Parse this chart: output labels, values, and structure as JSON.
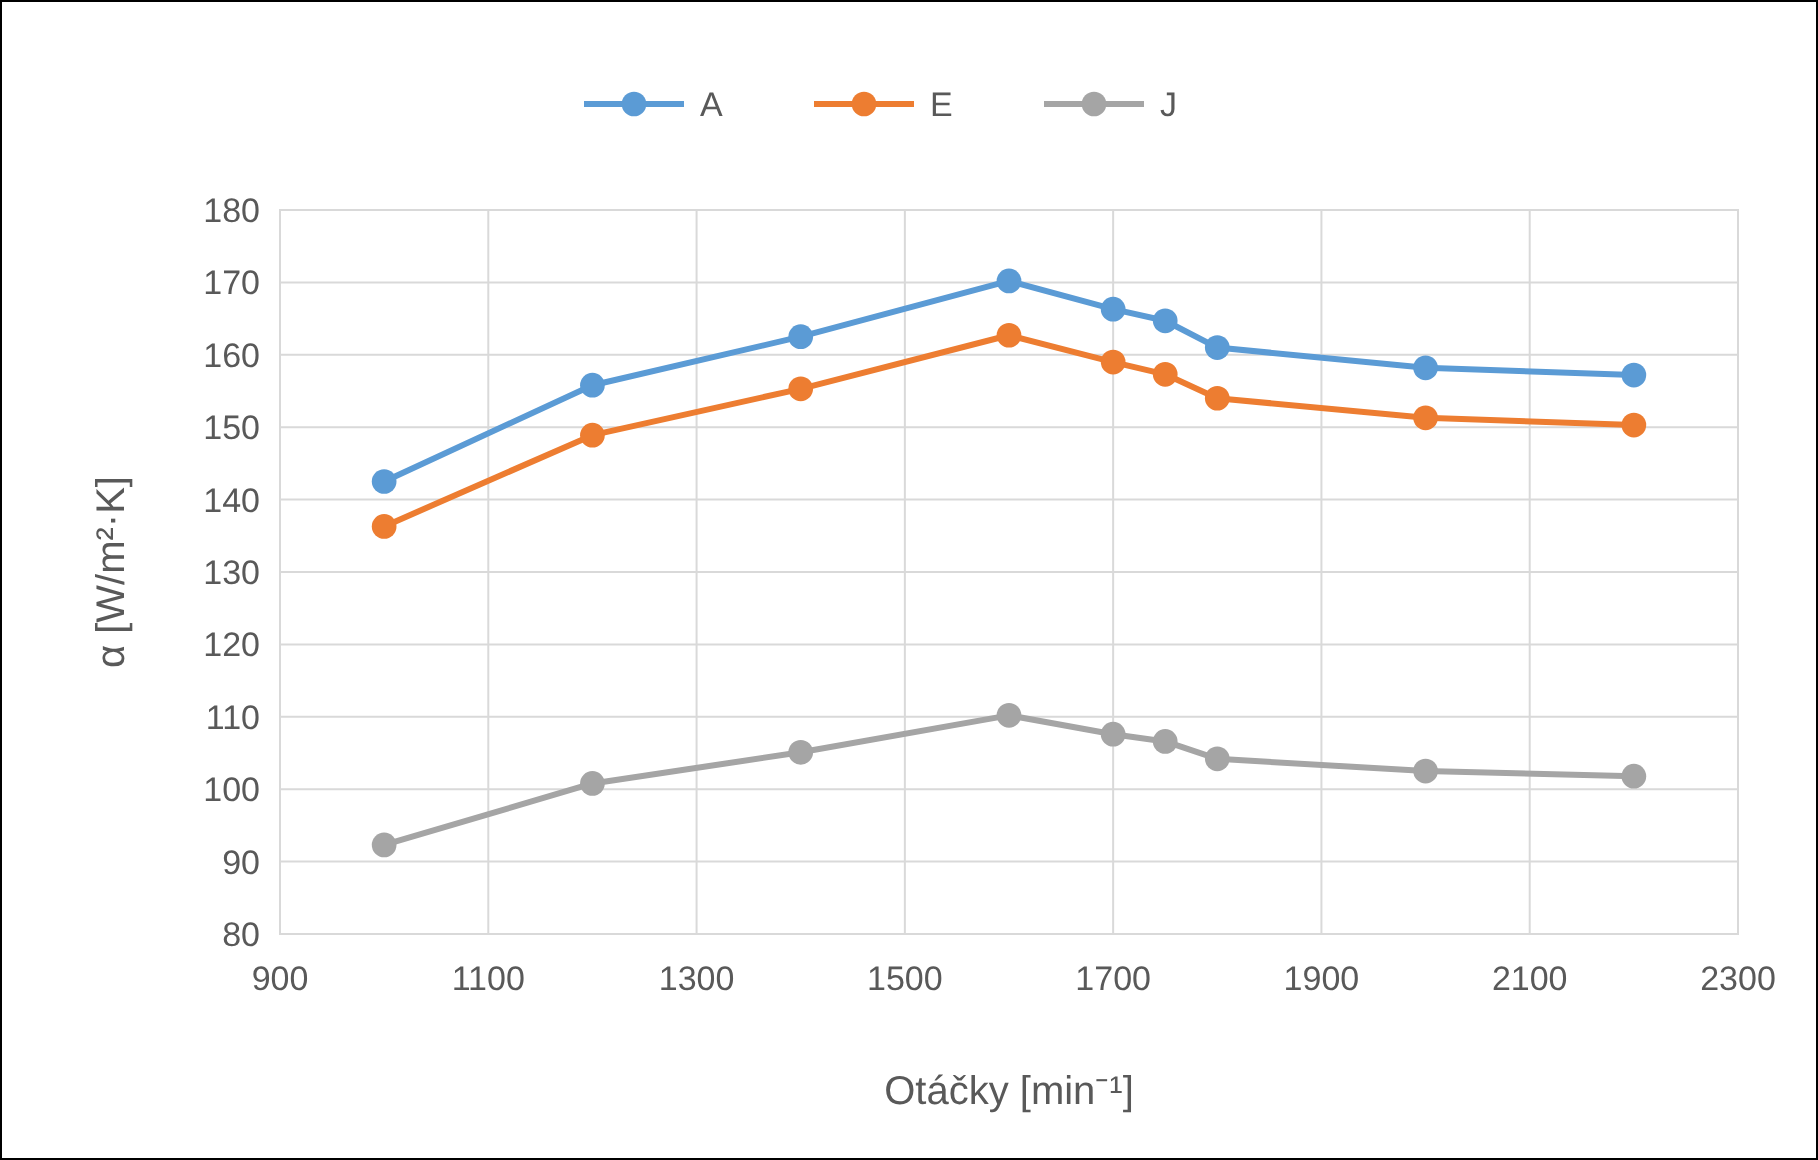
{
  "chart_data": {
    "type": "line",
    "xlabel": "Otáčky [min⁻¹]",
    "ylabel": "α [W/m²·K]",
    "x": [
      1000,
      1200,
      1400,
      1600,
      1700,
      1750,
      1800,
      2000,
      2200
    ],
    "series": [
      {
        "name": "A",
        "color": "#5b9bd5",
        "values": [
          142.5,
          155.8,
          162.5,
          170.2,
          166.3,
          164.7,
          161,
          158.2,
          157.2
        ]
      },
      {
        "name": "E",
        "color": "#ed7d31",
        "values": [
          136.3,
          148.9,
          155.3,
          162.7,
          159,
          157.3,
          154,
          151.3,
          150.3
        ]
      },
      {
        "name": "J",
        "color": "#a5a5a5",
        "values": [
          92.3,
          100.8,
          105.1,
          110.2,
          107.6,
          106.6,
          104.2,
          102.5,
          101.8
        ]
      }
    ],
    "xlim": [
      900,
      2300
    ],
    "xticks": [
      900,
      1100,
      1300,
      1500,
      1700,
      1900,
      2100,
      2300
    ],
    "ylim": [
      80,
      180
    ],
    "yticks": [
      80,
      90,
      100,
      110,
      120,
      130,
      140,
      150,
      160,
      170,
      180
    ],
    "grid": true,
    "legend": "top",
    "marker": "circle",
    "line_style": "solid"
  }
}
